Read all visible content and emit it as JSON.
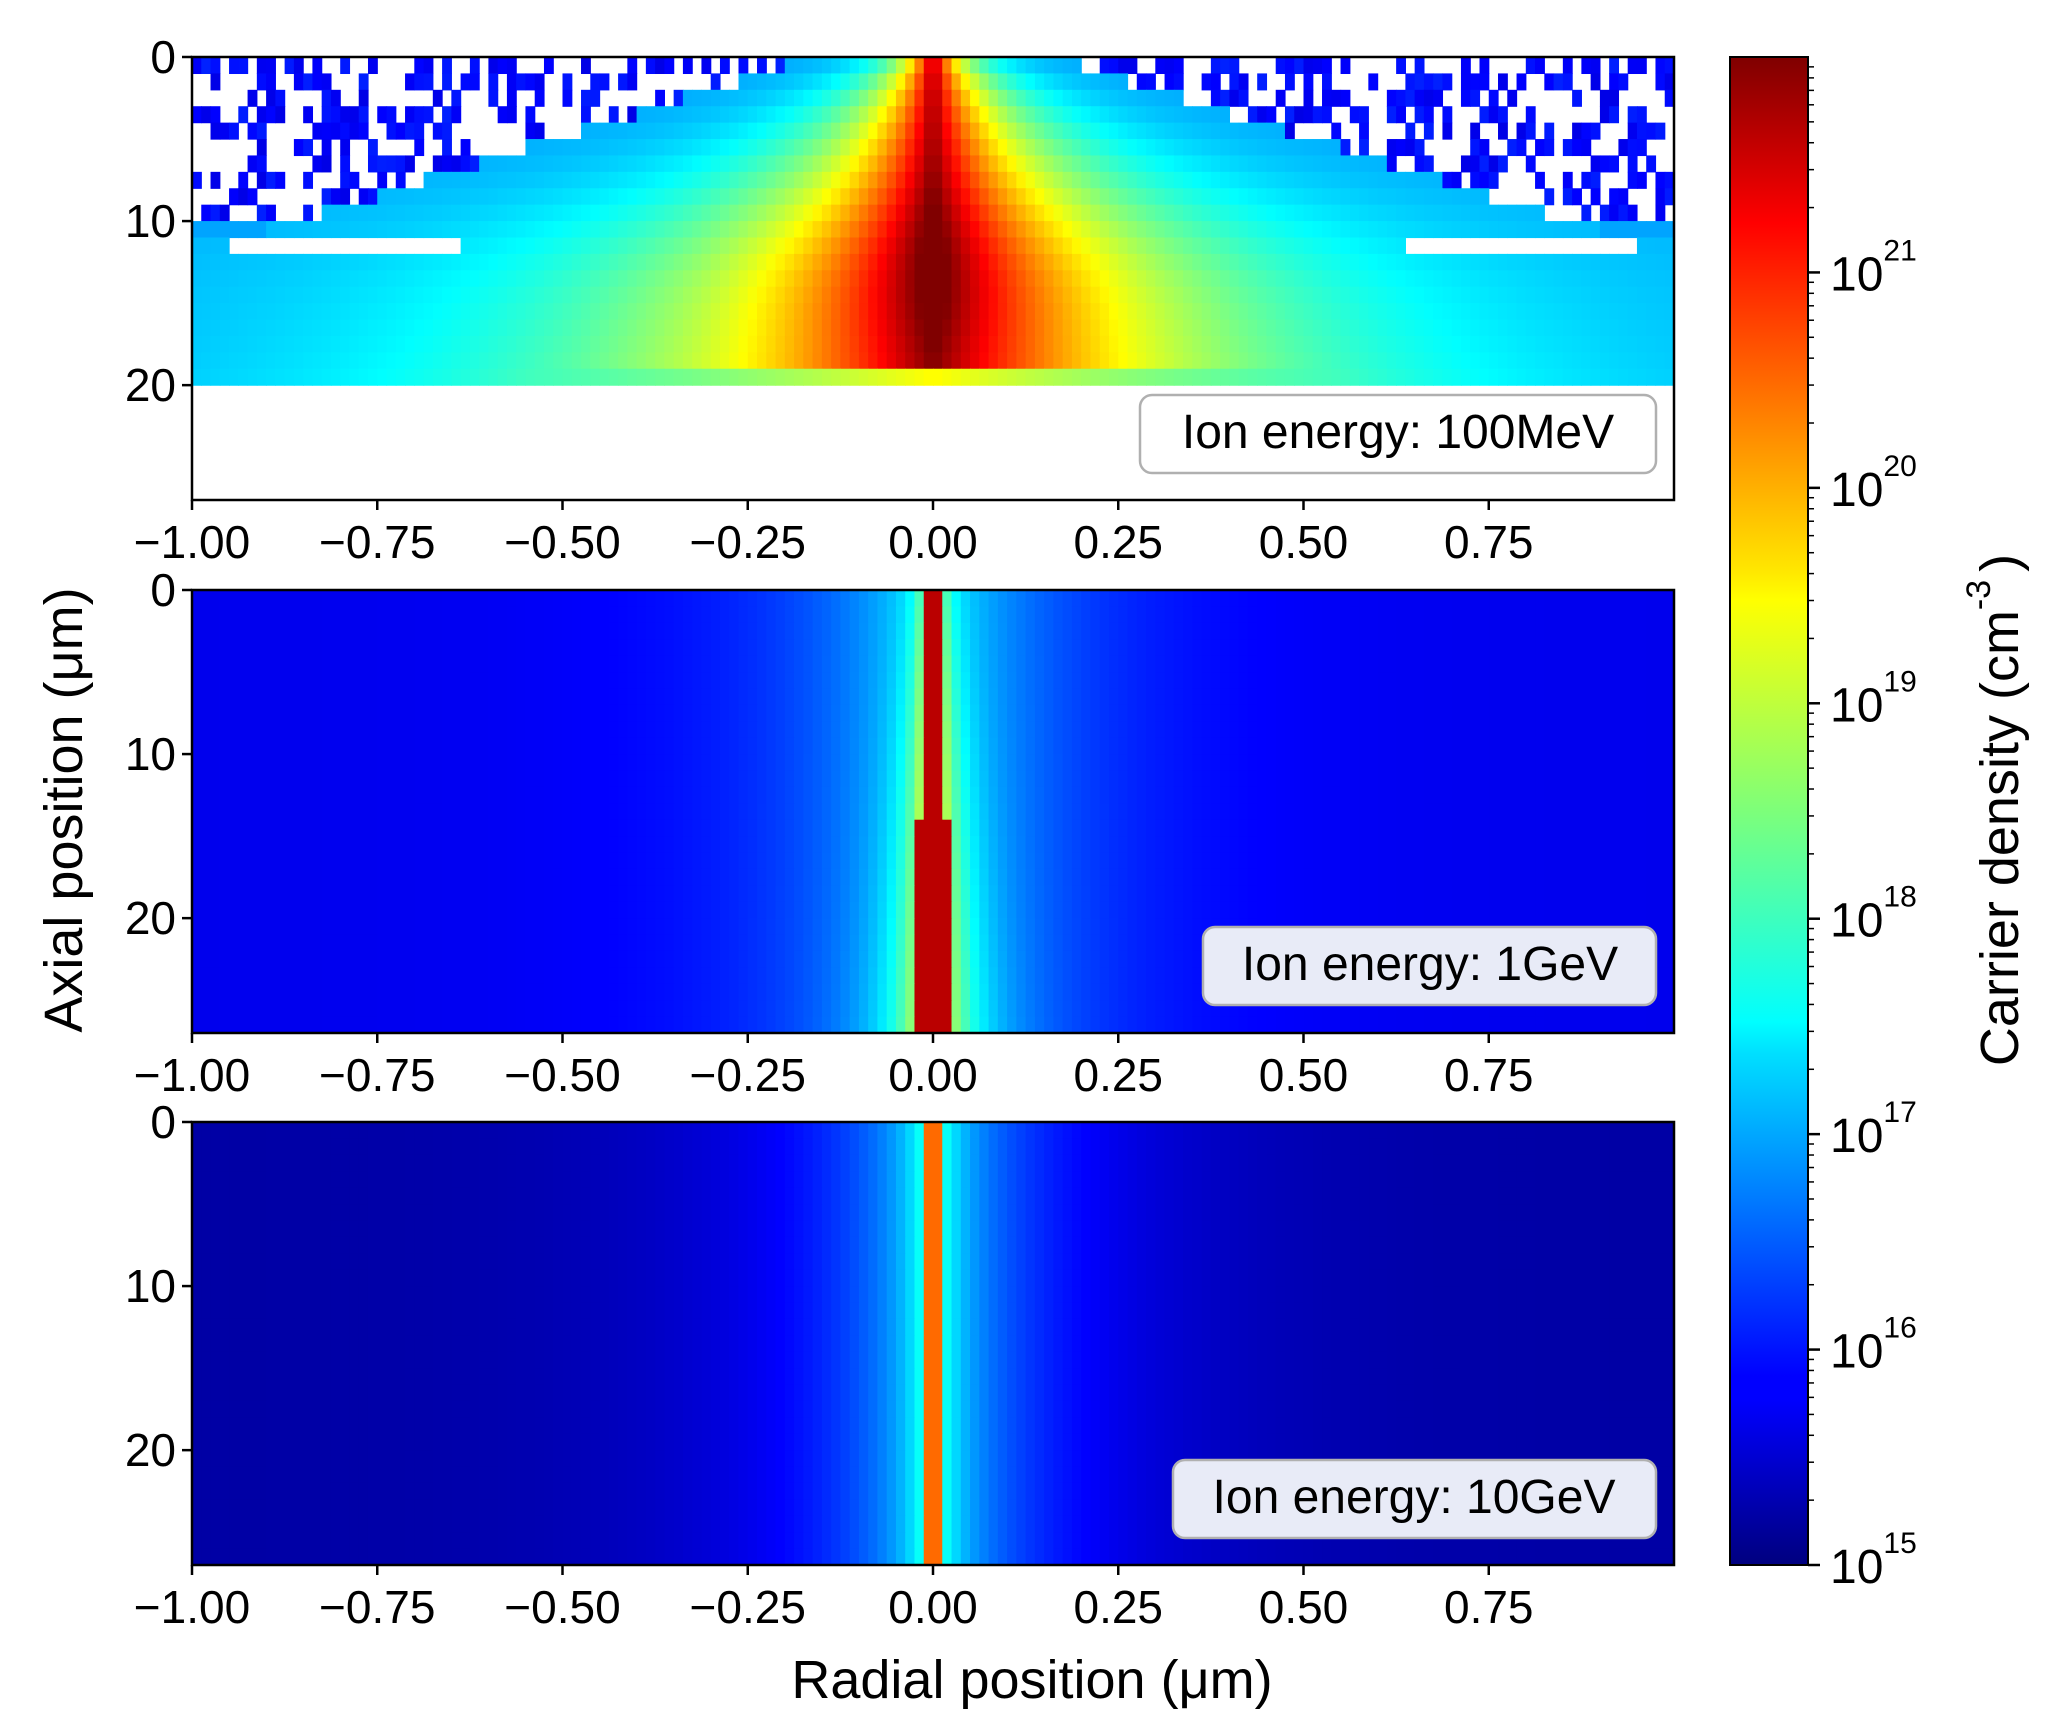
{
  "chart_data": {
    "type": "heatmap",
    "x_label": "Radial position (μm)",
    "y_label": "Axial position (μm)",
    "colorbar": {
      "label": "Carrier density (cm",
      "label_exponent": "-3",
      "label_close": ")",
      "scale": "log",
      "range": [
        1000000000000000.0,
        1e+22
      ],
      "colormap": "jet",
      "ticks": [
        {
          "base": "10",
          "exp": "15",
          "value": 1000000000000000.0
        },
        {
          "base": "10",
          "exp": "16",
          "value": 1e+16
        },
        {
          "base": "10",
          "exp": "17",
          "value": 1e+17
        },
        {
          "base": "10",
          "exp": "18",
          "value": 1e+18
        },
        {
          "base": "10",
          "exp": "19",
          "value": 1e+19
        },
        {
          "base": "10",
          "exp": "20",
          "value": 1e+20
        },
        {
          "base": "10",
          "exp": "21",
          "value": 1e+21
        }
      ]
    },
    "x_ticks": [
      "−1.00",
      "−0.75",
      "−0.50",
      "−0.25",
      "0.00",
      "0.25",
      "0.50",
      "0.75"
    ],
    "x_tick_values": [
      -1.0,
      -0.75,
      -0.5,
      -0.25,
      0.0,
      0.25,
      0.5,
      0.75
    ],
    "x_range": [
      -1.0,
      1.0
    ],
    "y_ticks": [
      "0",
      "10",
      "20"
    ],
    "y_tick_values": [
      0,
      10,
      20
    ],
    "y_range": [
      0,
      27
    ],
    "panels": [
      {
        "annotation": "Ion energy: 100MeV",
        "track_depth_um": 19.5,
        "peak_log_density": 21.8,
        "core_halfwidth_um": 0.01,
        "description_values": {
          "surface_log_density_edge": 15.5,
          "bulk_log_density_edge": 17.5
        }
      },
      {
        "annotation": "Ion energy: 1GeV",
        "track_depth_um": 27,
        "peak_log_density": 21.5,
        "core_halfwidth_um": 0.01,
        "description_values": {
          "background_log_density": 15.8
        }
      },
      {
        "annotation": "Ion energy: 10GeV",
        "track_depth_um": 27,
        "peak_log_density": 20.4,
        "core_halfwidth_um": 0.01,
        "description_values": {
          "background_log_density": 15.3
        }
      }
    ]
  }
}
